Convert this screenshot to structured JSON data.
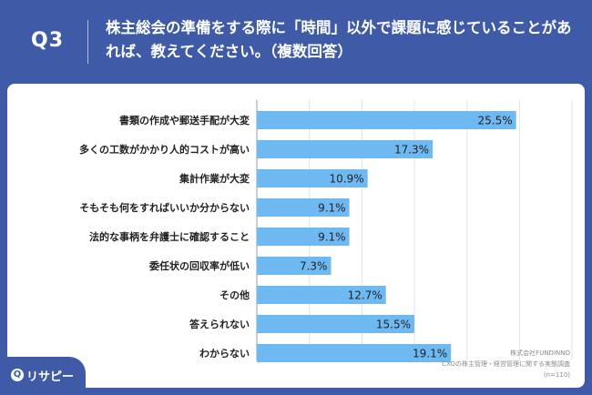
{
  "header": {
    "q_label": "Q3",
    "title": "株主総会の準備をする際に「時間」以外で課題に感じていることがあれば、教えてください。（複数回答）"
  },
  "chart_data": {
    "type": "bar",
    "orientation": "horizontal",
    "categories": [
      "書類の作成や郵送手配が大変",
      "多くの工数がかかり人的コストが高い",
      "集計作業が大変",
      "そもそも何をすればいいか分からない",
      "法的な事柄を弁護士に確認すること",
      "委任状の回収率が低い",
      "その他",
      "答えられない",
      "わからない"
    ],
    "values": [
      25.5,
      17.3,
      10.9,
      9.1,
      9.1,
      7.3,
      12.7,
      15.5,
      19.1
    ],
    "value_labels": [
      "25.5%",
      "17.3%",
      "10.9%",
      "9.1%",
      "9.1%",
      "7.3%",
      "12.7%",
      "15.5%",
      "19.1%"
    ],
    "unit": "%",
    "xlim": [
      0,
      31
    ],
    "grid": true,
    "bar_color": "#6fb9f3"
  },
  "footer": {
    "company": "株式会社FUNDINNO",
    "survey": "CXOの株主管理・経営管理に関する実態調査",
    "n": "(n=110)"
  },
  "logo": {
    "icon": "Q",
    "text": "リサピー"
  }
}
